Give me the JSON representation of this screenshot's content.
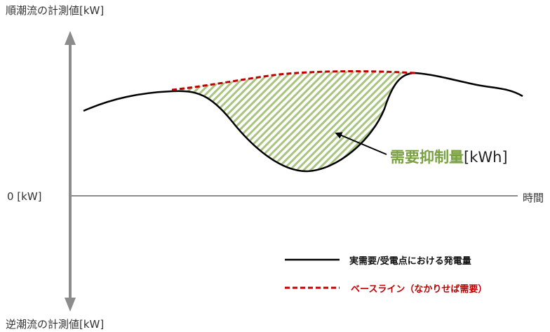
{
  "diagram": {
    "axis_top_label": "順潮流の計測値[kW]",
    "axis_bottom_label": "逆潮流の計測値[kW]",
    "zero_label": "0 [kW]",
    "time_label": "時間",
    "annotation_main": "需要抑制量",
    "annotation_unit": "[kWh]",
    "legend": [
      {
        "label": "実需要/受電点における発電量",
        "color": "#000000",
        "style": "solid"
      },
      {
        "label": "ベースライン（なかりせば需要）",
        "color": "#c00000",
        "style": "dashed"
      }
    ],
    "colors": {
      "axis": "#8c8c8c",
      "actual": "#000000",
      "baseline": "#c00000",
      "hatch": "#a9c47f",
      "annotation": "#7aa141"
    }
  }
}
